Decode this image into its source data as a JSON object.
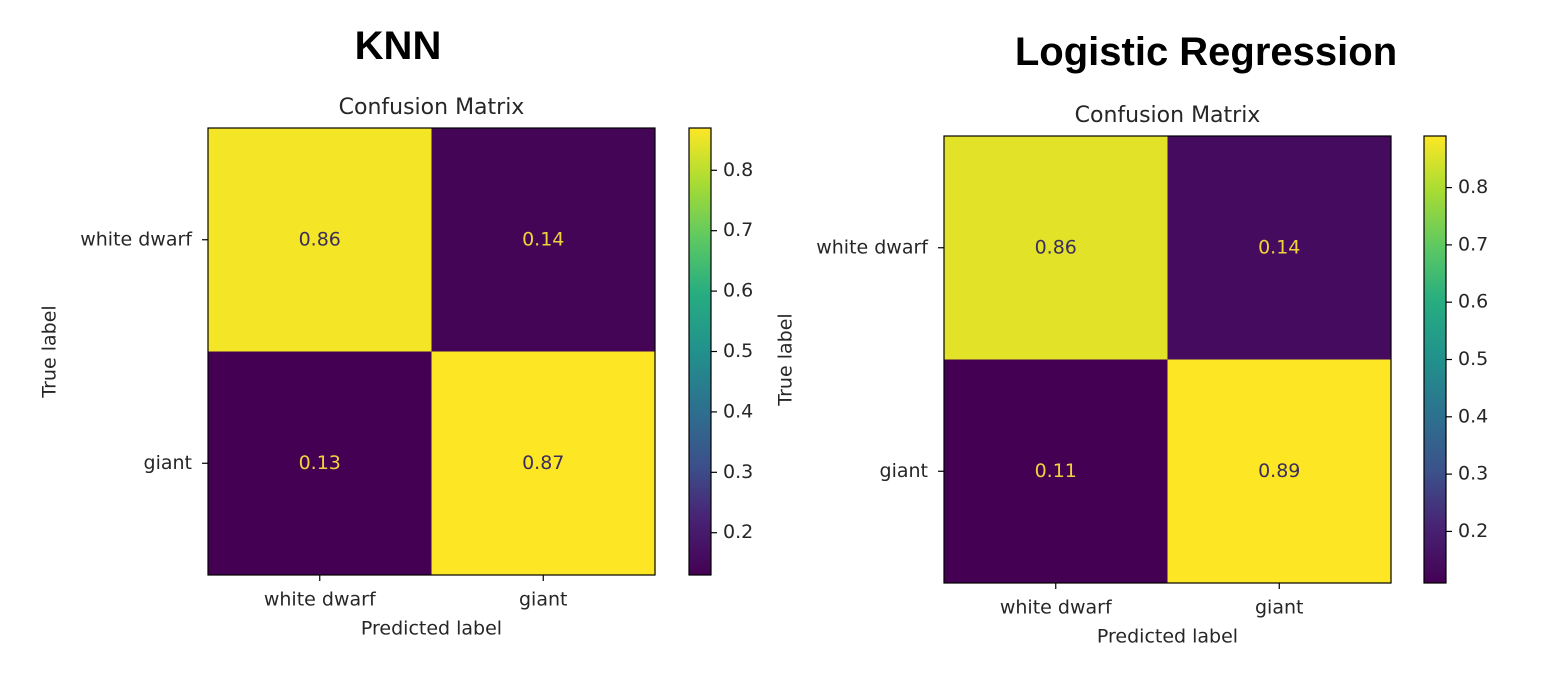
{
  "chart_data": [
    {
      "type": "heatmap",
      "heading": "KNN",
      "title": "Confusion Matrix",
      "xlabel": "Predicted label",
      "ylabel": "True label",
      "x_categories": [
        "white dwarf",
        "giant"
      ],
      "y_categories": [
        "white dwarf",
        "giant"
      ],
      "values": [
        [
          0.86,
          0.14
        ],
        [
          0.13,
          0.87
        ]
      ],
      "value_labels": [
        [
          "0.86",
          "0.14"
        ],
        [
          "0.13",
          "0.87"
        ]
      ],
      "colormap": "viridis",
      "colorbar": {
        "range": [
          0.13,
          0.87
        ],
        "ticks": [
          0.2,
          0.3,
          0.4,
          0.5,
          0.6,
          0.7,
          0.8
        ],
        "tick_labels": [
          "0.2",
          "0.3",
          "0.4",
          "0.5",
          "0.6",
          "0.7",
          "0.8"
        ]
      },
      "grid": false
    },
    {
      "type": "heatmap",
      "heading": "Logistic Regression",
      "title": "Confusion Matrix",
      "xlabel": "Predicted label",
      "ylabel": "True label",
      "x_categories": [
        "white dwarf",
        "giant"
      ],
      "y_categories": [
        "white dwarf",
        "giant"
      ],
      "values": [
        [
          0.86,
          0.14
        ],
        [
          0.11,
          0.89
        ]
      ],
      "value_labels": [
        [
          "0.86",
          "0.14"
        ],
        [
          "0.11",
          "0.89"
        ]
      ],
      "colormap": "viridis",
      "colorbar": {
        "range": [
          0.11,
          0.89
        ],
        "ticks": [
          0.2,
          0.3,
          0.4,
          0.5,
          0.6,
          0.7,
          0.8
        ],
        "tick_labels": [
          "0.2",
          "0.3",
          "0.4",
          "0.5",
          "0.6",
          "0.7",
          "0.8"
        ]
      },
      "grid": false
    }
  ]
}
